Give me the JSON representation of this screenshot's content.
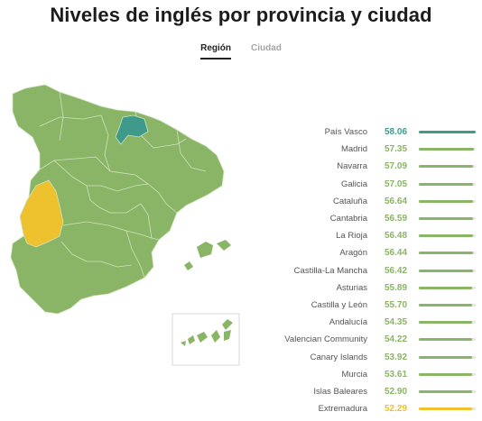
{
  "title": "Niveles de inglés por provincia y ciudad",
  "tabs": [
    {
      "label": "Región",
      "active": true
    },
    {
      "label": "Ciudad",
      "active": false
    }
  ],
  "colors": {
    "green": "#8ab466",
    "teal": "#3f9a8b",
    "yellow": "#eec12f",
    "border": "#cfe3bd"
  },
  "regions": [
    {
      "name": "País Vasco",
      "score": "58.06",
      "level": 1.0,
      "color": "#3f9a8b"
    },
    {
      "name": "Madrid",
      "score": "57.35",
      "level": 0.97,
      "color": "#8ab466"
    },
    {
      "name": "Navarra",
      "score": "57.09",
      "level": 0.96,
      "color": "#8ab466"
    },
    {
      "name": "Galicia",
      "score": "57.05",
      "level": 0.96,
      "color": "#8ab466"
    },
    {
      "name": "Cataluña",
      "score": "56.64",
      "level": 0.95,
      "color": "#8ab466"
    },
    {
      "name": "Cantabria",
      "score": "56.59",
      "level": 0.95,
      "color": "#8ab466"
    },
    {
      "name": "La Rioja",
      "score": "56.48",
      "level": 0.95,
      "color": "#8ab466"
    },
    {
      "name": "Aragón",
      "score": "56.44",
      "level": 0.95,
      "color": "#8ab466"
    },
    {
      "name": "Castilla-La Mancha",
      "score": "56.42",
      "level": 0.95,
      "color": "#8ab466"
    },
    {
      "name": "Asturias",
      "score": "55.89",
      "level": 0.94,
      "color": "#8ab466"
    },
    {
      "name": "Castilla y León",
      "score": "55.70",
      "level": 0.94,
      "color": "#8ab466"
    },
    {
      "name": "Andalucía",
      "score": "54.35",
      "level": 0.94,
      "color": "#8ab466"
    },
    {
      "name": "Valencian Community",
      "score": "54.22",
      "level": 0.94,
      "color": "#8ab466"
    },
    {
      "name": "Canary Islands",
      "score": "53.92",
      "level": 0.94,
      "color": "#8ab466"
    },
    {
      "name": "Murcia",
      "score": "53.61",
      "level": 0.94,
      "color": "#8ab466"
    },
    {
      "name": "Islas Baleares",
      "score": "52.90",
      "level": 0.94,
      "color": "#8ab466"
    },
    {
      "name": "Extremadura",
      "score": "52.29",
      "level": 0.94,
      "color": "#eec12f"
    }
  ]
}
